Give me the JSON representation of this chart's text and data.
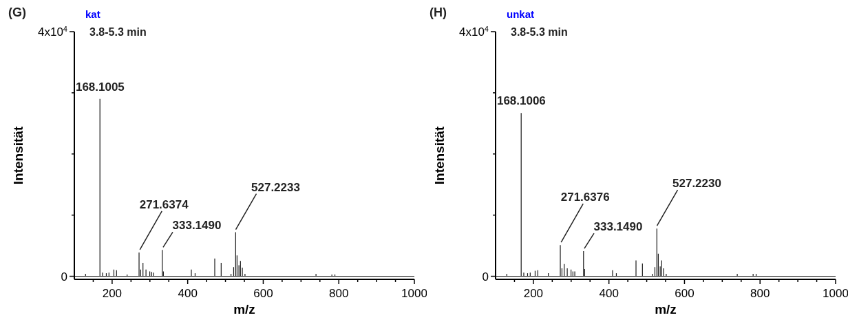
{
  "chart_data": [
    {
      "type": "bar",
      "title": "(G)",
      "subtitle": "kat",
      "xlabel": "m/z",
      "ylabel": "Intensität",
      "x": [
        130,
        168.1005,
        175,
        185,
        192,
        205,
        212,
        240,
        271.6374,
        276,
        282,
        290,
        300,
        305,
        310,
        333.149,
        336,
        410,
        420,
        472,
        489,
        515,
        522,
        527.2233,
        531,
        536,
        540,
        545,
        552,
        740,
        782,
        790
      ],
      "series": [
        {
          "color": "#1a1a1a",
          "values": [
            400,
            29000,
            600,
            500,
            600,
            1100,
            1000,
            300,
            3900,
            1100,
            2200,
            1100,
            800,
            700,
            600,
            4300,
            800,
            1100,
            500,
            2900,
            2200,
            400,
            1500,
            7200,
            3400,
            1800,
            2500,
            1400,
            400,
            400,
            300,
            300
          ]
        }
      ],
      "xlim": [
        100,
        1000
      ],
      "xticks": [
        {
          "value": 150,
          "label": null
        },
        200,
        {
          "value": 250,
          "label": null
        },
        {
          "value": 300,
          "label": null
        },
        {
          "value": 350,
          "label": null
        },
        400,
        {
          "value": 450,
          "label": null
        },
        {
          "value": 500,
          "label": null
        },
        {
          "value": 550,
          "label": null
        },
        600,
        {
          "value": 650,
          "label": null
        },
        {
          "value": 700,
          "label": null
        },
        {
          "value": 750,
          "label": null
        },
        800,
        {
          "value": 850,
          "label": null
        },
        {
          "value": 900,
          "label": null
        },
        {
          "value": 950,
          "label": null
        },
        1000
      ],
      "ylim": [
        -500,
        40000
      ],
      "yticks": [
        0,
        {
          "value": 10000,
          "label": null
        },
        {
          "value": 20000,
          "label": null
        },
        {
          "value": 30000,
          "label": null
        },
        {
          "value": 40000,
          "label": "4x10$^{4}$"
        }
      ],
      "ref_lines": [
        {
          "axis": "y",
          "value": 0,
          "color": "#1a1a1a"
        }
      ],
      "annotations": [
        "3.8-5.3 min",
        {
          "text": "168.1005",
          "x": 168.1005,
          "y": 29000
        },
        {
          "text": "271.6374",
          "x": 271.6374,
          "y": 3900
        },
        {
          "text": "333.1490",
          "x": 333.149,
          "y": 4300
        },
        {
          "text": "527.2233",
          "x": 527.2233,
          "y": 7200
        }
      ],
      "grid": false,
      "legend": false
    },
    {
      "type": "bar",
      "title": "(H)",
      "subtitle": "unkat",
      "xlabel": "m/z",
      "ylabel": "Intensität",
      "x": [
        130,
        168.1006,
        175,
        185,
        192,
        205,
        212,
        240,
        271.6376,
        276,
        282,
        290,
        300,
        305,
        310,
        333.149,
        336,
        410,
        420,
        472,
        489,
        515,
        522,
        527.223,
        531,
        536,
        540,
        545,
        552,
        740,
        782,
        790
      ],
      "series": [
        {
          "color": "#1a1a1a",
          "values": [
            400,
            26700,
            600,
            500,
            600,
            900,
            1000,
            500,
            5100,
            1300,
            2000,
            1300,
            1100,
            800,
            800,
            4100,
            1200,
            1000,
            500,
            2600,
            2100,
            400,
            1500,
            7800,
            3700,
            1600,
            2600,
            1300,
            400,
            400,
            400,
            400
          ]
        }
      ],
      "xlim": [
        100,
        1000
      ],
      "xticks": [
        {
          "value": 150,
          "label": null
        },
        200,
        {
          "value": 250,
          "label": null
        },
        {
          "value": 300,
          "label": null
        },
        {
          "value": 350,
          "label": null
        },
        400,
        {
          "value": 450,
          "label": null
        },
        {
          "value": 500,
          "label": null
        },
        {
          "value": 550,
          "label": null
        },
        600,
        {
          "value": 650,
          "label": null
        },
        {
          "value": 700,
          "label": null
        },
        {
          "value": 750,
          "label": null
        },
        800,
        {
          "value": 850,
          "label": null
        },
        {
          "value": 900,
          "label": null
        },
        {
          "value": 950,
          "label": null
        },
        1000
      ],
      "ylim": [
        -500,
        40000
      ],
      "yticks": [
        0,
        {
          "value": 10000,
          "label": null
        },
        {
          "value": 20000,
          "label": null
        },
        {
          "value": 30000,
          "label": null
        },
        {
          "value": 40000,
          "label": "4x10$^{4}$"
        }
      ],
      "ref_lines": [
        {
          "axis": "y",
          "value": 0,
          "color": "#1a1a1a"
        }
      ],
      "annotations": [
        "3.8-5.3 min",
        {
          "text": "168.1006",
          "x": 168.1006,
          "y": 26700
        },
        {
          "text": "271.6376",
          "x": 271.6376,
          "y": 5100
        },
        {
          "text": "333.1490",
          "x": 333.149,
          "y": 4100
        },
        {
          "text": "527.2230",
          "x": 527.223,
          "y": 7800
        }
      ],
      "grid": false,
      "legend": false
    }
  ]
}
